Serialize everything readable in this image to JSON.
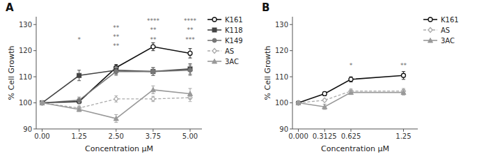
{
  "chart_data": [
    {
      "type": "line",
      "title": "A",
      "x_label": "Concentration μM",
      "y_label": "% Cell Growth",
      "x": [
        0.0,
        1.25,
        2.5,
        3.75,
        5.0
      ],
      "xlim": [
        -0.2,
        5.4
      ],
      "xticks": [
        {
          "value": 0.0,
          "label": "0.00"
        },
        1.25,
        {
          "value": 2.5,
          "label": "2.50"
        },
        3.75,
        {
          "value": 5.0,
          "label": "5.00"
        }
      ],
      "ylim": [
        90,
        133
      ],
      "yticks": [
        90,
        100,
        110,
        120,
        130
      ],
      "grid": false,
      "legend": "right",
      "series": [
        {
          "name": "K161",
          "color": "#111111",
          "marker": "circle-open",
          "line_style": "solid",
          "values": [
            100,
            100.5,
            113.5,
            121.5,
            119.0
          ],
          "errors": [
            0.5,
            0.8,
            1.2,
            1.5,
            1.8
          ]
        },
        {
          "name": "K118",
          "color": "#444444",
          "marker": "square",
          "line_style": "solid",
          "values": [
            100,
            110.5,
            112.5,
            112.0,
            113.0
          ],
          "errors": [
            0.5,
            2.0,
            1.5,
            1.5,
            2.0
          ]
        },
        {
          "name": "K149",
          "color": "#777777",
          "marker": "circle",
          "line_style": "solid",
          "values": [
            100,
            101.0,
            112.0,
            112.0,
            112.5
          ],
          "errors": [
            0.5,
            1.2,
            1.5,
            1.5,
            2.0
          ]
        },
        {
          "name": "AS",
          "color": "#aaaaaa",
          "marker": "diamond-open",
          "line_style": "dashed",
          "values": [
            100,
            98.0,
            101.5,
            101.5,
            102.0
          ],
          "errors": [
            0.5,
            0.8,
            1.2,
            1.0,
            1.5
          ]
        },
        {
          "name": "3AC",
          "color": "#999999",
          "marker": "triangle",
          "line_style": "solid",
          "values": [
            100,
            97.5,
            94.0,
            105.0,
            103.5
          ],
          "errors": [
            0.5,
            0.8,
            1.5,
            1.5,
            2.0
          ]
        }
      ],
      "annotations": [
        {
          "x": 1.25,
          "y": 123.5,
          "text": "*"
        },
        {
          "x": 2.5,
          "y": 128.0,
          "text": "**"
        },
        {
          "x": 2.5,
          "y": 124.5,
          "text": "**"
        },
        {
          "x": 2.5,
          "y": 121.0,
          "text": "**"
        },
        {
          "x": 3.75,
          "y": 130.5,
          "text": "****"
        },
        {
          "x": 3.75,
          "y": 127.0,
          "text": "**"
        },
        {
          "x": 3.75,
          "y": 123.5,
          "text": "**"
        },
        {
          "x": 5.0,
          "y": 130.5,
          "text": "****"
        },
        {
          "x": 5.0,
          "y": 127.0,
          "text": "**"
        },
        {
          "x": 5.0,
          "y": 123.5,
          "text": "***"
        }
      ]
    },
    {
      "type": "line",
      "title": "B",
      "x_label": "Concentration μM",
      "y_label": "% Cell Growth",
      "x": [
        0.0,
        0.3125,
        0.625,
        1.25
      ],
      "xlim": [
        -0.07,
        1.42
      ],
      "xticks": [
        {
          "value": 0.0,
          "label": "0.000"
        },
        0.3125,
        0.625,
        1.25
      ],
      "ylim": [
        90,
        133
      ],
      "yticks": [
        90,
        100,
        110,
        120,
        130
      ],
      "grid": false,
      "legend": "right",
      "series": [
        {
          "name": "K161",
          "color": "#111111",
          "marker": "circle-open",
          "line_style": "solid",
          "values": [
            100,
            103.5,
            109.0,
            110.5
          ],
          "errors": [
            0.5,
            0.8,
            1.0,
            1.5
          ]
        },
        {
          "name": "AS",
          "color": "#aaaaaa",
          "marker": "diamond-open",
          "line_style": "dashed",
          "values": [
            100,
            101.0,
            104.5,
            104.5
          ],
          "errors": [
            0.5,
            0.5,
            0.8,
            1.0
          ]
        },
        {
          "name": "3AC",
          "color": "#999999",
          "marker": "triangle",
          "line_style": "solid",
          "values": [
            100,
            98.5,
            104.0,
            104.0
          ],
          "errors": [
            0.8,
            1.0,
            0.8,
            1.0
          ]
        }
      ],
      "annotations": [
        {
          "x": 0.625,
          "y": 113.5,
          "text": "*"
        },
        {
          "x": 1.25,
          "y": 113.5,
          "text": "**"
        }
      ]
    }
  ]
}
